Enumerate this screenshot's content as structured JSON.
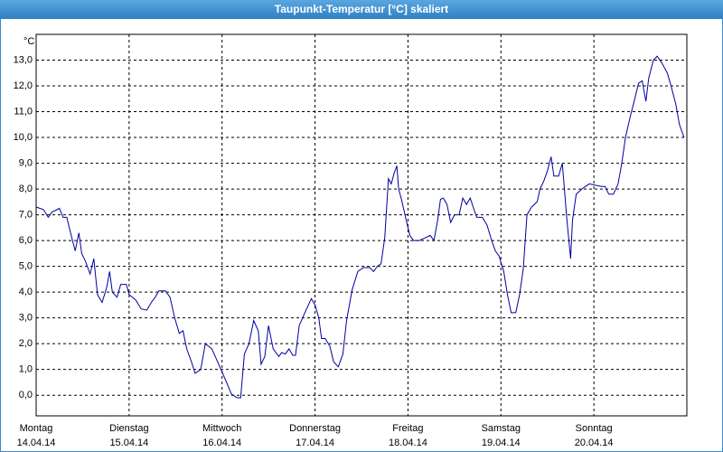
{
  "chart_data": {
    "type": "line",
    "title": "Taupunkt-Temperatur [°C] skaliert",
    "y_unit": "°C",
    "xlim": [
      0,
      7
    ],
    "ylim": [
      -0.8,
      14.0
    ],
    "yticks": [
      {
        "value": 0,
        "label": "0,0"
      },
      {
        "value": 1,
        "label": "1,0"
      },
      {
        "value": 2,
        "label": "2,0"
      },
      {
        "value": 3,
        "label": "3,0"
      },
      {
        "value": 4,
        "label": "4,0"
      },
      {
        "value": 5,
        "label": "5,0"
      },
      {
        "value": 6,
        "label": "6,0"
      },
      {
        "value": 7,
        "label": "7,0"
      },
      {
        "value": 8,
        "label": "8,0"
      },
      {
        "value": 9,
        "label": "9,0"
      },
      {
        "value": 10,
        "label": "10,0"
      },
      {
        "value": 11,
        "label": "11,0"
      },
      {
        "value": 12,
        "label": "12,0"
      },
      {
        "value": 13,
        "label": "13,0"
      }
    ],
    "xticks": [
      {
        "value": 0,
        "label": "Montag"
      },
      {
        "value": 1,
        "label": "Dienstag"
      },
      {
        "value": 2,
        "label": "Mittwoch"
      },
      {
        "value": 3,
        "label": "Donnerstag"
      },
      {
        "value": 4,
        "label": "Freitag"
      },
      {
        "value": 5,
        "label": "Samstag"
      },
      {
        "value": 6,
        "label": "Sonntag"
      }
    ],
    "xtick_dates": [
      "14.04.14",
      "15.04.14",
      "16.04.14",
      "17.04.14",
      "18.04.14",
      "19.04.14",
      "20.04.14"
    ],
    "grid": true,
    "series": [
      {
        "color": "#0000a0",
        "x": [
          0,
          0.08,
          0.13,
          0.17,
          0.25,
          0.29,
          0.33,
          0.37,
          0.42,
          0.46,
          0.49,
          0.53,
          0.58,
          0.62,
          0.66,
          0.71,
          0.76,
          0.79,
          0.82,
          0.87,
          0.91,
          0.97,
          1.0,
          1.07,
          1.13,
          1.19,
          1.24,
          1.28,
          1.32,
          1.39,
          1.44,
          1.49,
          1.54,
          1.58,
          1.62,
          1.67,
          1.71,
          1.77,
          1.82,
          1.89,
          1.94,
          2.0,
          2.06,
          2.1,
          2.16,
          2.2,
          2.24,
          2.29,
          2.34,
          2.39,
          2.42,
          2.46,
          2.5,
          2.55,
          2.61,
          2.64,
          2.68,
          2.72,
          2.76,
          2.79,
          2.83,
          2.89,
          2.96,
          3.0,
          3.04,
          3.07,
          3.11,
          3.16,
          3.2,
          3.25,
          3.3,
          3.34,
          3.4,
          3.46,
          3.52,
          3.59,
          3.63,
          3.67,
          3.71,
          3.75,
          3.79,
          3.82,
          3.85,
          3.88,
          3.9,
          3.93,
          3.98,
          4.02,
          4.06,
          4.12,
          4.18,
          4.24,
          4.28,
          4.32,
          4.35,
          4.38,
          4.42,
          4.46,
          4.5,
          4.55,
          4.59,
          4.63,
          4.67,
          4.71,
          4.74,
          4.8,
          4.85,
          4.9,
          4.94,
          4.98,
          5.03,
          5.07,
          5.11,
          5.16,
          5.2,
          5.24,
          5.28,
          5.33,
          5.39,
          5.42,
          5.46,
          5.5,
          5.54,
          5.57,
          5.62,
          5.66,
          5.71,
          5.75,
          5.77,
          5.81,
          5.87,
          5.91,
          5.95,
          6.01,
          6.08,
          6.12,
          6.16,
          6.21,
          6.26,
          6.3,
          6.34,
          6.39,
          6.44,
          6.48,
          6.52,
          6.56,
          6.59,
          6.64,
          6.68,
          6.73,
          6.79,
          6.83,
          6.88,
          6.92,
          6.97
        ],
        "values": [
          7.3,
          7.2,
          6.9,
          7.1,
          7.25,
          6.9,
          6.9,
          6.3,
          5.6,
          6.3,
          5.5,
          5.2,
          4.7,
          5.3,
          3.9,
          3.6,
          4.2,
          4.8,
          4.0,
          3.8,
          4.3,
          4.3,
          3.9,
          3.7,
          3.35,
          3.3,
          3.6,
          3.8,
          4.05,
          4.05,
          3.8,
          3.0,
          2.4,
          2.5,
          1.8,
          1.3,
          0.85,
          1.0,
          2.0,
          1.8,
          1.4,
          0.9,
          0.4,
          0.05,
          -0.1,
          -0.1,
          1.6,
          2.0,
          2.9,
          2.5,
          1.2,
          1.5,
          2.7,
          1.8,
          1.5,
          1.65,
          1.6,
          1.8,
          1.55,
          1.55,
          2.7,
          3.2,
          3.75,
          3.5,
          3.0,
          2.2,
          2.2,
          1.9,
          1.3,
          1.1,
          1.6,
          2.9,
          4.1,
          4.8,
          4.95,
          4.95,
          4.8,
          5.0,
          5.1,
          6.1,
          8.4,
          8.2,
          8.6,
          8.9,
          8.0,
          7.6,
          6.8,
          6.2,
          6.0,
          6.0,
          6.1,
          6.2,
          6.0,
          6.8,
          7.6,
          7.65,
          7.4,
          6.7,
          7.0,
          7.0,
          7.65,
          7.4,
          7.65,
          7.2,
          6.9,
          6.9,
          6.6,
          6.0,
          5.6,
          5.4,
          4.8,
          3.9,
          3.2,
          3.2,
          3.9,
          4.9,
          7.0,
          7.3,
          7.5,
          8.0,
          8.3,
          8.7,
          9.25,
          8.5,
          8.5,
          9.0,
          6.8,
          5.3,
          6.8,
          7.8,
          8.0,
          8.1,
          8.2,
          8.15,
          8.1,
          8.1,
          7.8,
          7.8,
          8.2,
          9.0,
          10.0,
          10.8,
          11.5,
          12.1,
          12.2,
          11.4,
          12.3,
          13.0,
          13.15,
          12.9,
          12.5,
          12.0,
          11.3,
          10.5,
          10.0
        ]
      }
    ]
  }
}
